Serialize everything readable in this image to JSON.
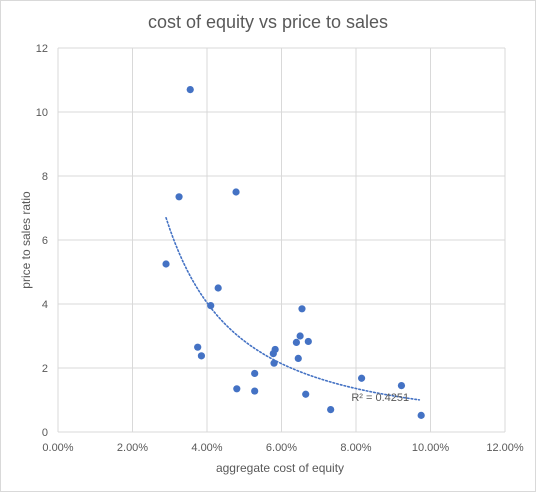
{
  "chart_data": {
    "type": "scatter",
    "title": "cost of equity vs price to sales",
    "xlabel": "aggregate cost of equity",
    "ylabel": "price to sales ratio",
    "xlim": [
      0,
      0.12
    ],
    "ylim": [
      0,
      12
    ],
    "x_ticks": [
      "0.00%",
      "2.00%",
      "4.00%",
      "6.00%",
      "8.00%",
      "10.00%",
      "12.00%"
    ],
    "y_ticks": [
      "0",
      "2",
      "4",
      "6",
      "8",
      "10",
      "12"
    ],
    "grid": "vertical and horizontal major gridlines",
    "point_color": "#4472c4",
    "trendline": {
      "type": "power",
      "style": "dotted",
      "color": "#4472c4",
      "x_range": [
        0.029,
        0.097
      ],
      "r2_label": "R² = 0.4251"
    },
    "series": [
      {
        "points": [
          {
            "x": 0.0355,
            "y": 10.7
          },
          {
            "x": 0.0325,
            "y": 7.35
          },
          {
            "x": 0.0478,
            "y": 7.5
          },
          {
            "x": 0.029,
            "y": 5.25
          },
          {
            "x": 0.041,
            "y": 3.95
          },
          {
            "x": 0.043,
            "y": 4.5
          },
          {
            "x": 0.0375,
            "y": 2.65
          },
          {
            "x": 0.0385,
            "y": 2.38
          },
          {
            "x": 0.048,
            "y": 1.35
          },
          {
            "x": 0.0528,
            "y": 1.83
          },
          {
            "x": 0.0528,
            "y": 1.28
          },
          {
            "x": 0.0578,
            "y": 2.45
          },
          {
            "x": 0.058,
            "y": 2.15
          },
          {
            "x": 0.0583,
            "y": 2.58
          },
          {
            "x": 0.064,
            "y": 2.8
          },
          {
            "x": 0.0645,
            "y": 2.3
          },
          {
            "x": 0.065,
            "y": 3.0
          },
          {
            "x": 0.0655,
            "y": 3.85
          },
          {
            "x": 0.0665,
            "y": 1.18
          },
          {
            "x": 0.0672,
            "y": 2.83
          },
          {
            "x": 0.0732,
            "y": 0.7
          },
          {
            "x": 0.0815,
            "y": 1.68
          },
          {
            "x": 0.0922,
            "y": 1.45
          },
          {
            "x": 0.0975,
            "y": 0.52
          }
        ]
      }
    ]
  }
}
